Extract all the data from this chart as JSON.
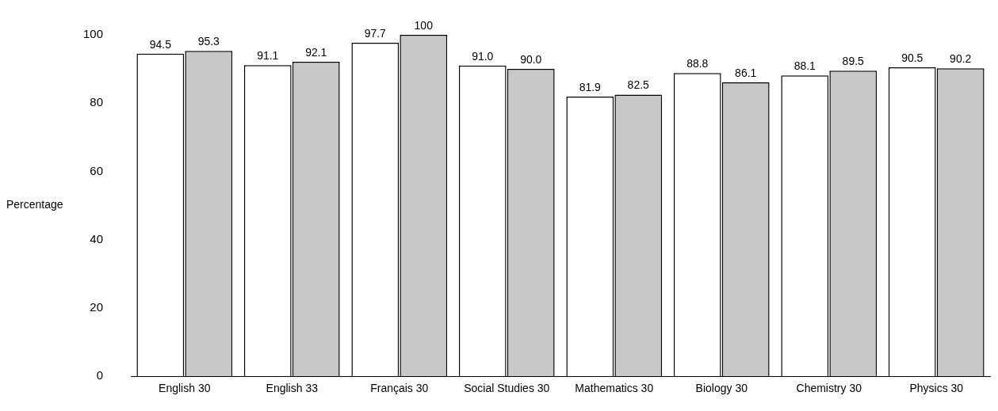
{
  "chart_data": {
    "type": "bar",
    "ylabel": "Percentage",
    "categories": [
      "English 30",
      "English 33",
      "Français 30",
      "Social Studies 30",
      "Mathematics 30",
      "Biology 30",
      "Chemistry 30",
      "Physics 30"
    ],
    "series": [
      {
        "color": "#ffffff",
        "values": [
          94.5,
          91.1,
          97.7,
          91.0,
          81.9,
          88.8,
          88.1,
          90.5
        ],
        "value_labels": [
          "94.5",
          "91.1",
          "97.7",
          "91.0",
          "81.9",
          "88.8",
          "88.1",
          "90.5"
        ]
      },
      {
        "color": "#c8c8c8",
        "values": [
          95.3,
          92.1,
          100,
          90.0,
          82.5,
          86.1,
          89.5,
          90.2
        ],
        "value_labels": [
          "95.3",
          "92.1",
          "100",
          "90.0",
          "82.5",
          "86.1",
          "89.5",
          "90.2"
        ]
      }
    ],
    "ylim": [
      0,
      100
    ],
    "yticks": [
      0,
      20,
      40,
      60,
      80,
      100
    ],
    "grid": false,
    "legend": false
  }
}
